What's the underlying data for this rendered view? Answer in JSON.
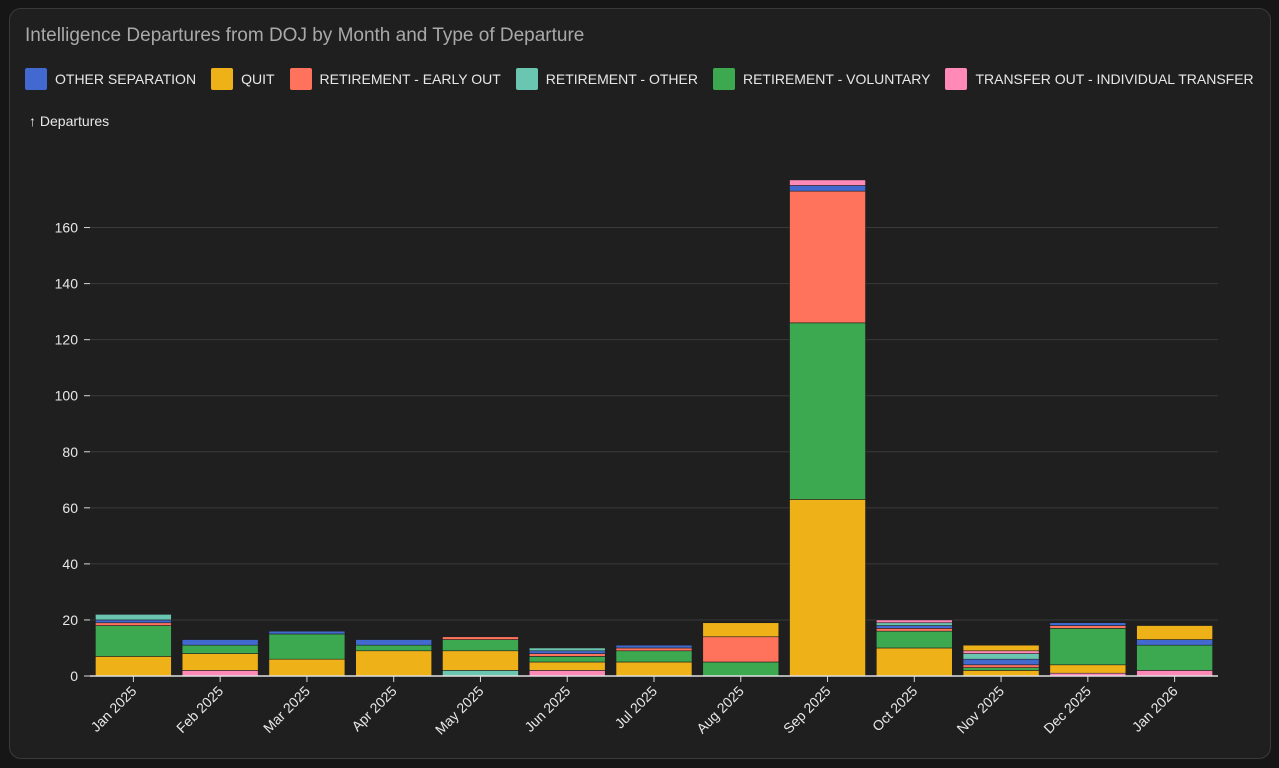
{
  "chart_data": {
    "type": "bar",
    "stacked": true,
    "title": "Intelligence Departures from DOJ by Month and Type of Departure",
    "ylabel": "↑ Departures",
    "xlabel": "",
    "ylim": [
      0,
      180
    ],
    "yticks": [
      0,
      20,
      40,
      60,
      80,
      100,
      120,
      140,
      160
    ],
    "grid": true,
    "legend_position": "top-left",
    "categories": [
      "Jan 2025",
      "Feb 2025",
      "Mar 2025",
      "Apr 2025",
      "May 2025",
      "Jun 2025",
      "Jul 2025",
      "Aug 2025",
      "Sep 2025",
      "Oct 2025",
      "Nov 2025",
      "Dec 2025",
      "Jan 2026"
    ],
    "series": [
      {
        "name": "TRANSFER OUT - INDIVIDUAL TRANSFER",
        "color": "#ff8ab8",
        "values": [
          0,
          2,
          0,
          0,
          0,
          2,
          0,
          0,
          0,
          0,
          0,
          1,
          2
        ]
      },
      {
        "name": "RETIREMENT - OTHER",
        "color": "#6ac6b0",
        "values": [
          0,
          0,
          0,
          0,
          2,
          0,
          0,
          0,
          0,
          0,
          0,
          0,
          0
        ]
      },
      {
        "name": "QUIT",
        "color": "#efb118",
        "values": [
          7,
          6,
          6,
          9,
          7,
          3,
          5,
          0,
          63,
          10,
          2,
          3,
          0
        ]
      },
      {
        "name": "RETIREMENT - VOLUNTARY",
        "color": "#3ca951",
        "values": [
          11,
          3,
          9,
          2,
          4,
          2,
          4,
          5,
          63,
          6,
          1,
          13,
          9
        ]
      },
      {
        "name": "RETIREMENT - EARLY OUT",
        "color": "#ff725c",
        "values": [
          1,
          0,
          0,
          0,
          1,
          1,
          1,
          9,
          47,
          1,
          1,
          1,
          0
        ]
      },
      {
        "name": "OTHER SEPARATION",
        "color": "#4269d0",
        "values": [
          1,
          2,
          1,
          2,
          0,
          1,
          1,
          0,
          2,
          1,
          2,
          1,
          2
        ]
      },
      {
        "name": "RETIREMENT - OTHER",
        "color": "#6ac6b0",
        "values": [
          2,
          0,
          0,
          0,
          0,
          1,
          0,
          0,
          0,
          1,
          2,
          0,
          0
        ]
      },
      {
        "name": "TRANSFER OUT - INDIVIDUAL TRANSFER",
        "color": "#ff8ab8",
        "values": [
          0,
          0,
          0,
          0,
          0,
          0,
          0,
          0,
          2,
          1,
          1,
          0,
          0
        ]
      },
      {
        "name": "QUIT",
        "color": "#efb118",
        "values": [
          0,
          0,
          0,
          0,
          0,
          0,
          0,
          5,
          0,
          0,
          2,
          0,
          5
        ]
      }
    ],
    "legend": [
      {
        "label": "OTHER SEPARATION",
        "color": "#4269d0"
      },
      {
        "label": "QUIT",
        "color": "#efb118"
      },
      {
        "label": "RETIREMENT - EARLY OUT",
        "color": "#ff725c"
      },
      {
        "label": "RETIREMENT - OTHER",
        "color": "#6ac6b0"
      },
      {
        "label": "RETIREMENT - VOLUNTARY",
        "color": "#3ca951"
      },
      {
        "label": "TRANSFER OUT - INDIVIDUAL TRANSFER",
        "color": "#ff8ab8"
      }
    ]
  }
}
